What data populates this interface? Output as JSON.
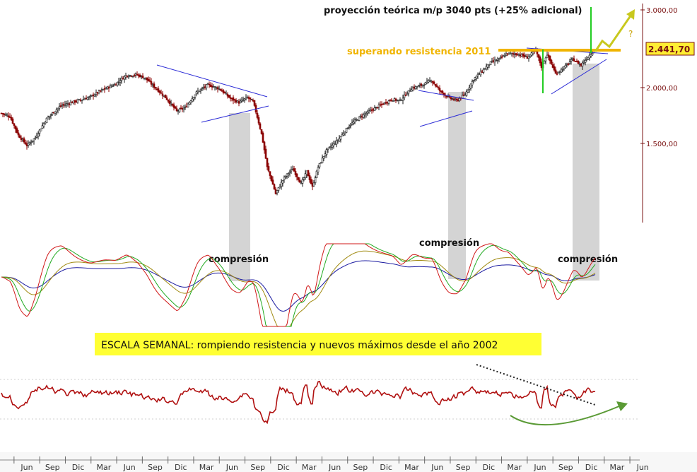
{
  "annotations": {
    "projection": "proyección teórica m/p 3040 pts (+25% adicional)",
    "resistance": "superando resistencia 2011",
    "question": "?",
    "compression_1": "compresión",
    "compression_2": "compresión",
    "compression_3": "compresión",
    "banner": "ESCALA SEMANAL: rompiendo resistencia y nuevos máximos desde el año 2002"
  },
  "colors": {
    "price_up": "#1a1a1a",
    "price_down": "#8b0000",
    "trend_lines": "#2b2bd6",
    "resistance": "#f0b400",
    "projection_up": "#c8c81e",
    "projection_green": "#22cc22",
    "compression_band": "#d4d4d4",
    "banner_bg": "#ffff33",
    "rsi": "#b01010",
    "axis": "#7a1010",
    "macd_red": "#d01818",
    "macd_green": "#22aa22",
    "macd_olive": "#a08a10",
    "macd_blue": "#1a1aa0"
  },
  "chart_data": {
    "type": "line",
    "title": "",
    "ylabel": "",
    "xlabel": "",
    "y_ticks": [
      "3.000,00",
      "2.000,00",
      "1.500,00"
    ],
    "last_price_label": "2.441,70",
    "ylim": [
      950,
      3100
    ],
    "x_tick_labels": [
      "Jun",
      "Sep",
      "Dic",
      "Mar",
      "Jun",
      "Sep",
      "Dic",
      "Mar",
      "Jun",
      "Sep",
      "Dic",
      "Mar",
      "Jun",
      "Sep",
      "Dic",
      "Mar",
      "Jun",
      "Sep",
      "Dic",
      "Mar",
      "Jun",
      "Sep",
      "Dic",
      "Mar",
      "Jun"
    ],
    "price_anchors": [
      [
        0,
        1750
      ],
      [
        6,
        1720
      ],
      [
        12,
        1560
      ],
      [
        18,
        1480
      ],
      [
        24,
        1540
      ],
      [
        32,
        1700
      ],
      [
        42,
        1820
      ],
      [
        52,
        1860
      ],
      [
        62,
        1900
      ],
      [
        72,
        1980
      ],
      [
        80,
        2030
      ],
      [
        88,
        2130
      ],
      [
        96,
        2140
      ],
      [
        102,
        2100
      ],
      [
        108,
        2010
      ],
      [
        116,
        1900
      ],
      [
        124,
        1770
      ],
      [
        130,
        1800
      ],
      [
        138,
        1950
      ],
      [
        146,
        2030
      ],
      [
        154,
        1990
      ],
      [
        162,
        1890
      ],
      [
        168,
        1850
      ],
      [
        174,
        1900
      ],
      [
        178,
        1860
      ],
      [
        184,
        1570
      ],
      [
        188,
        1320
      ],
      [
        194,
        1150
      ],
      [
        200,
        1250
      ],
      [
        206,
        1310
      ],
      [
        212,
        1210
      ],
      [
        216,
        1290
      ],
      [
        220,
        1190
      ],
      [
        224,
        1320
      ],
      [
        230,
        1440
      ],
      [
        238,
        1520
      ],
      [
        246,
        1640
      ],
      [
        254,
        1720
      ],
      [
        262,
        1780
      ],
      [
        270,
        1840
      ],
      [
        276,
        1880
      ],
      [
        282,
        1870
      ],
      [
        290,
        1990
      ],
      [
        298,
        2030
      ],
      [
        304,
        2080
      ],
      [
        310,
        1970
      ],
      [
        316,
        1900
      ],
      [
        322,
        1870
      ],
      [
        328,
        1930
      ],
      [
        334,
        2090
      ],
      [
        340,
        2180
      ],
      [
        346,
        2280
      ],
      [
        352,
        2320
      ],
      [
        358,
        2390
      ],
      [
        366,
        2380
      ],
      [
        372,
        2340
      ],
      [
        378,
        2430
      ],
      [
        382,
        2230
      ],
      [
        386,
        2380
      ],
      [
        392,
        2150
      ],
      [
        398,
        2220
      ],
      [
        404,
        2320
      ],
      [
        410,
        2250
      ],
      [
        416,
        2370
      ],
      [
        420,
        2441.7
      ]
    ],
    "series": []
  }
}
